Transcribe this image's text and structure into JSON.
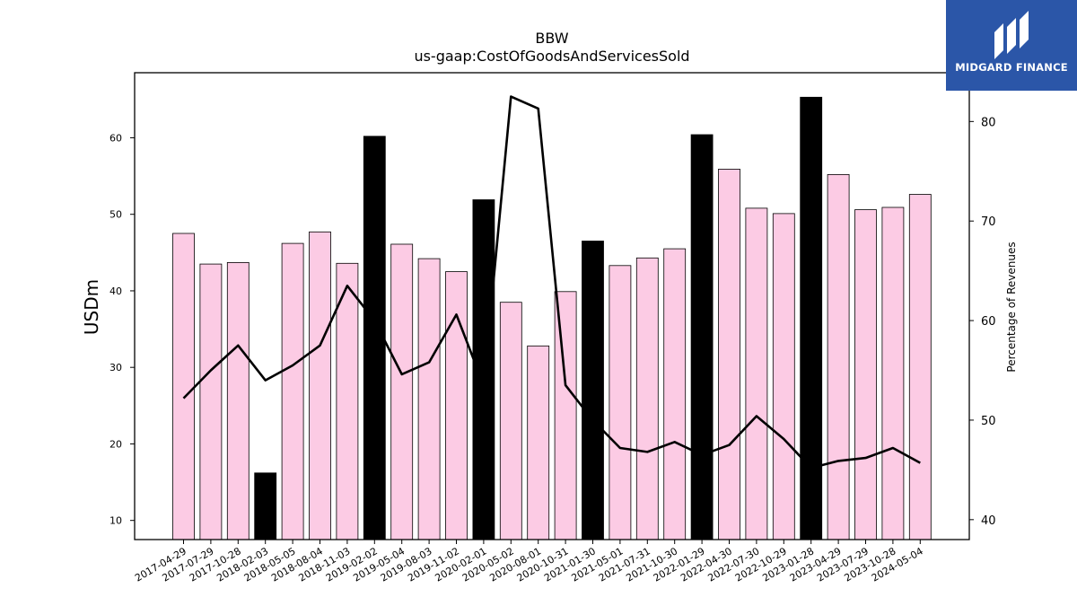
{
  "chart_data": {
    "type": "bar",
    "title": "BBW",
    "subtitle": "us-gaap:CostOfGoodsAndServicesSold",
    "ylabel": "USDm",
    "y2label": "Percentage of Revenues",
    "ylim": [
      7.5,
      68.5
    ],
    "y2lim": [
      38,
      84.9
    ],
    "yticks": [
      10,
      20,
      30,
      40,
      50,
      60
    ],
    "y2ticks": [
      40,
      50,
      60,
      70,
      80
    ],
    "categories": [
      "2017-04-29",
      "2017-07-29",
      "2017-10-28",
      "2018-02-03",
      "2018-05-05",
      "2018-08-04",
      "2018-11-03",
      "2019-02-02",
      "2019-05-04",
      "2019-08-03",
      "2019-11-02",
      "2020-02-01",
      "2020-05-02",
      "2020-08-01",
      "2020-10-31",
      "2021-01-30",
      "2021-05-01",
      "2021-07-31",
      "2021-10-30",
      "2022-01-29",
      "2022-04-30",
      "2022-07-30",
      "2022-10-29",
      "2023-01-28",
      "2023-04-29",
      "2023-07-29",
      "2023-10-28",
      "2024-05-04"
    ],
    "series": [
      {
        "kind": "bar",
        "values": [
          47.5,
          43.5,
          43.7,
          16.2,
          46.2,
          47.7,
          43.6,
          60.2,
          46.1,
          44.2,
          42.5,
          51.9,
          38.5,
          32.8,
          39.9,
          46.5,
          43.3,
          44.3,
          45.5,
          60.4,
          55.9,
          50.8,
          50.1,
          65.3,
          55.2,
          50.6,
          50.9,
          52.6
        ],
        "highlight": [
          false,
          false,
          false,
          true,
          false,
          false,
          false,
          true,
          false,
          false,
          false,
          true,
          false,
          false,
          false,
          true,
          false,
          false,
          false,
          true,
          false,
          false,
          false,
          true,
          false,
          false,
          false,
          false
        ],
        "color": "#fccbe4",
        "highlight_color": "#000000"
      },
      {
        "kind": "line",
        "axis": "right",
        "values": [
          52.2,
          55.0,
          57.5,
          54.0,
          55.5,
          57.5,
          63.5,
          60.0,
          54.6,
          55.8,
          60.6,
          53.5,
          82.5,
          81.3,
          53.5,
          50.0,
          47.2,
          46.8,
          47.8,
          46.5,
          47.5,
          50.4,
          48.1,
          45.2,
          45.9,
          46.2,
          47.2,
          45.7
        ],
        "color": "#000000"
      }
    ]
  },
  "logo": {
    "text": "MIDGARD FINANCE",
    "color": "#2b56a8"
  }
}
